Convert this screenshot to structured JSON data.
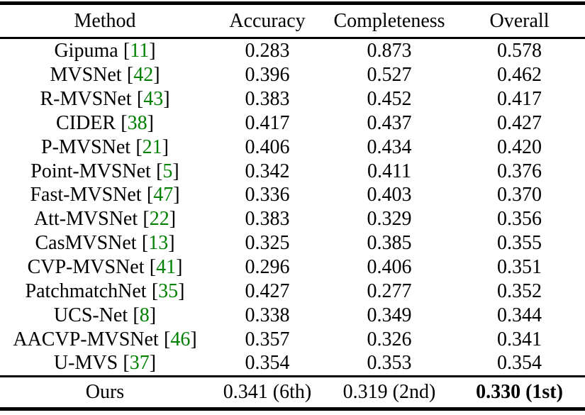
{
  "table": {
    "columns": [
      "Method",
      "Accuracy",
      "Completeness",
      "Overall"
    ],
    "cite_open": "[",
    "cite_close": "]",
    "rows": [
      {
        "method": "Gipuma",
        "cite": "11",
        "accuracy": "0.283",
        "completeness": "0.873",
        "overall": "0.578"
      },
      {
        "method": "MVSNet",
        "cite": "42",
        "accuracy": "0.396",
        "completeness": "0.527",
        "overall": "0.462"
      },
      {
        "method": "R-MVSNet",
        "cite": "43",
        "accuracy": "0.383",
        "completeness": "0.452",
        "overall": "0.417"
      },
      {
        "method": "CIDER",
        "cite": "38",
        "accuracy": "0.417",
        "completeness": "0.437",
        "overall": "0.427"
      },
      {
        "method": "P-MVSNet",
        "cite": "21",
        "accuracy": "0.406",
        "completeness": "0.434",
        "overall": "0.420"
      },
      {
        "method": "Point-MVSNet",
        "cite": "5",
        "accuracy": "0.342",
        "completeness": "0.411",
        "overall": "0.376"
      },
      {
        "method": "Fast-MVSNet",
        "cite": "47",
        "accuracy": "0.336",
        "completeness": "0.403",
        "overall": "0.370"
      },
      {
        "method": "Att-MVSNet",
        "cite": "22",
        "accuracy": "0.383",
        "completeness": "0.329",
        "overall": "0.356"
      },
      {
        "method": "CasMVSNet",
        "cite": "13",
        "accuracy": "0.325",
        "completeness": "0.385",
        "overall": "0.355"
      },
      {
        "method": "CVP-MVSNet",
        "cite": "41",
        "accuracy": "0.296",
        "completeness": "0.406",
        "overall": "0.351"
      },
      {
        "method": "PatchmatchNet",
        "cite": "35",
        "accuracy": "0.427",
        "completeness": "0.277",
        "overall": "0.352"
      },
      {
        "method": "UCS-Net",
        "cite": "8",
        "accuracy": "0.338",
        "completeness": "0.349",
        "overall": "0.344"
      },
      {
        "method": "AACVP-MVSNet",
        "cite": "46",
        "accuracy": "0.357",
        "completeness": "0.326",
        "overall": "0.341"
      },
      {
        "method": "U-MVS",
        "cite": "37",
        "accuracy": "0.354",
        "completeness": "0.353",
        "overall": "0.354"
      }
    ],
    "footer": {
      "method": "Ours",
      "accuracy": "0.341 (6th)",
      "completeness": "0.319 (2nd)",
      "overall": "0.330 (1st)"
    }
  },
  "colors": {
    "text": "#000000",
    "citation_green": "#008000",
    "rule": "#000000",
    "background": "#ffffff"
  }
}
